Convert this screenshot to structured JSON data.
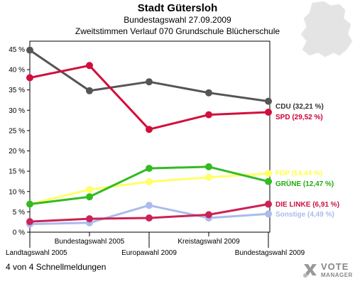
{
  "header": {
    "title": "Stadt Gütersloh",
    "subtitle1": "Bundestagswahl 27.09.2009",
    "subtitle2": "Zweitstimmen Verlauf 070 Grundschule Blücherschule"
  },
  "footer": {
    "text": "4 von 4 Schnellmeldungen"
  },
  "brand": {
    "line1": "VOTE",
    "line2": "MANAGER",
    "icon": "vote-manager-logo-icon"
  },
  "chart_data": {
    "type": "line",
    "title": "Stadt Gütersloh",
    "subtitle": "Zweitstimmen Verlauf 070 Grundschule Blücherschule",
    "categories": [
      "Landtagswahl 2005",
      "Bundestagswahl 2005",
      "Europawahl 2009",
      "Kreistagswahl 2009",
      "Bundestagswahl 2009"
    ],
    "ylim": [
      0,
      47
    ],
    "yticks": [
      "0 %",
      "5 %",
      "10 %",
      "15 %",
      "20 %",
      "25 %",
      "30 %",
      "35 %",
      "40 %",
      "45 %"
    ],
    "grid": false,
    "legend": "right",
    "series": [
      {
        "name": "CDU",
        "label": "CDU (32,21 %)",
        "color": "#555555",
        "values": [
          44.8,
          34.8,
          37.0,
          34.3,
          32.21
        ]
      },
      {
        "name": "SPD",
        "label": "SPD (29,52 %)",
        "color": "#d20f3c",
        "values": [
          38.0,
          41.0,
          25.3,
          28.9,
          29.52
        ]
      },
      {
        "name": "FDP",
        "label": "FDP (14,44 %)",
        "color": "#ffff66",
        "values": [
          6.9,
          10.5,
          12.4,
          13.5,
          14.44
        ]
      },
      {
        "name": "GRÜNE",
        "label": "GRÜNE (12,47 %)",
        "color": "#33bb22",
        "values": [
          6.9,
          8.7,
          15.7,
          16.1,
          12.47
        ]
      },
      {
        "name": "DIE LINKE",
        "label": "DIE LINKE (6,91 %)",
        "color": "#cc2255",
        "values": [
          2.6,
          3.3,
          3.5,
          4.3,
          6.91
        ]
      },
      {
        "name": "Sonstige",
        "label": "Sonstige (4,49 %)",
        "color": "#aabbee",
        "values": [
          2.0,
          2.3,
          6.6,
          3.5,
          4.49
        ]
      }
    ]
  }
}
